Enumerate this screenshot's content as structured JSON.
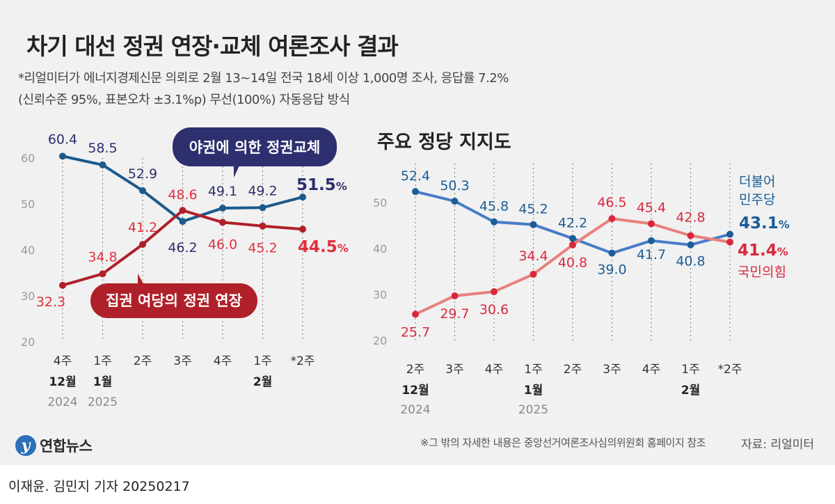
{
  "header": {
    "title": "차기 대선 정권 연장·교체 여론조사 결과",
    "note_line1": "*리얼미터가 에너지경제신문 의뢰로 2월 13~14일 전국 18세 이상 1,000명 조사, 응답률 7.2%",
    "note_line2": "(신뢰수준 95%, 표본오차 ±3.1%p) 무선(100%) 자동응답 방식"
  },
  "chart_data": [
    {
      "type": "line",
      "title": "",
      "x_weeks": [
        "4주",
        "1주",
        "2주",
        "3주",
        "4주",
        "1주",
        "*2주"
      ],
      "x_months": [
        {
          "at": 0,
          "label": "12월"
        },
        {
          "at": 1,
          "label": "1월"
        },
        {
          "at": 5,
          "label": "2월"
        }
      ],
      "x_years": [
        {
          "at": 0,
          "label": "2024"
        },
        {
          "at": 1,
          "label": "2025"
        }
      ],
      "ylim": [
        20,
        60
      ],
      "yticks": [
        20,
        30,
        40,
        50,
        60
      ],
      "grid": false,
      "series": [
        {
          "name": "야권에 의한 정권교체",
          "color": "#1c5a8c",
          "labelColor": "#2d2f6e",
          "legendBg": "#2d2f6e",
          "values": [
            60.4,
            58.5,
            52.9,
            46.2,
            49.1,
            49.2,
            51.5
          ],
          "labels": [
            "60.4",
            "58.5",
            "52.9",
            "46.2",
            "49.1",
            "49.2",
            "51.5"
          ],
          "last_label": "51.5"
        },
        {
          "name": "집권 여당의 정권 연장",
          "color": "#b0202a",
          "labelColor": "#e0303c",
          "legendBg": "#b0202a",
          "values": [
            32.3,
            34.8,
            41.2,
            48.6,
            46.0,
            45.2,
            44.5
          ],
          "labels": [
            "32.3",
            "34.8",
            "41.2",
            "48.6",
            "46.0",
            "45.2",
            "44.5"
          ],
          "last_label": "44.5"
        }
      ]
    },
    {
      "type": "line",
      "title": "주요 정당 지지도",
      "x_weeks": [
        "2주",
        "3주",
        "4주",
        "1주",
        "2주",
        "3주",
        "4주",
        "1주",
        "*2주"
      ],
      "x_months": [
        {
          "at": 0,
          "label": "12월"
        },
        {
          "at": 3,
          "label": "1월"
        },
        {
          "at": 7,
          "label": "2월"
        }
      ],
      "x_years": [
        {
          "at": 0,
          "label": "2024"
        },
        {
          "at": 3,
          "label": "2025"
        }
      ],
      "ylim": [
        20,
        60
      ],
      "yticks": [
        20,
        30,
        40,
        50
      ],
      "grid": false,
      "series": [
        {
          "name": "더불어 민주당",
          "name_lines": [
            "더불어",
            "민주당"
          ],
          "color": "#4a7cc8",
          "labelColor": "#1b5d96",
          "values": [
            52.4,
            50.3,
            45.8,
            45.2,
            42.2,
            39.0,
            41.7,
            40.8,
            43.1
          ],
          "labels": [
            "52.4",
            "50.3",
            "45.8",
            "45.2",
            "42.2",
            "39.0",
            "41.7",
            "40.8",
            "43.1"
          ],
          "last_label": "43.1"
        },
        {
          "name": "국민의힘",
          "name_lines": [
            "국민의힘"
          ],
          "color": "#e8807e",
          "labelColor": "#d8283c",
          "values": [
            25.7,
            29.7,
            30.6,
            34.4,
            40.8,
            46.5,
            45.4,
            42.8,
            41.4
          ],
          "labels": [
            "25.7",
            "29.7",
            "30.6",
            "34.4",
            "40.8",
            "46.5",
            "45.4",
            "42.8",
            "41.4"
          ],
          "last_label": "41.4"
        }
      ]
    }
  ],
  "footer": {
    "logo_mark": "y",
    "logo_text": "연합뉴스",
    "footnote": "※그 밖의 자세한 내용은 중앙선거여론조사심의위원회 홈페이지 참조",
    "source": "자료: 리얼미터",
    "byline": "이재윤. 김민지 기자  20250217"
  }
}
